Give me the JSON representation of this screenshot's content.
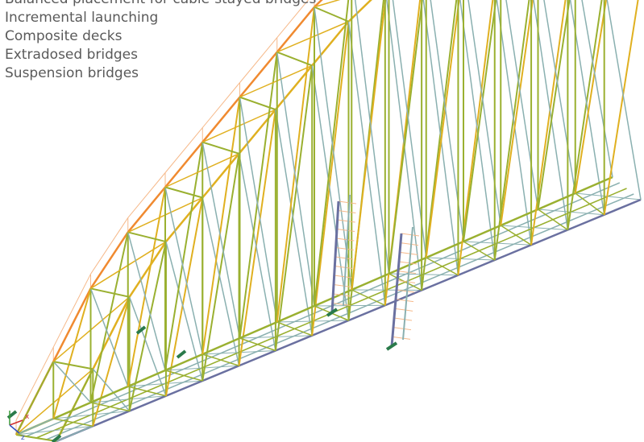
{
  "features": [
    "Balanced placement for cable-stayed bridges",
    "Incremental launching",
    "Composite decks",
    "Extradosed bridges",
    "Suspension bridges"
  ],
  "axes": {
    "x": "x",
    "z": "z"
  }
}
